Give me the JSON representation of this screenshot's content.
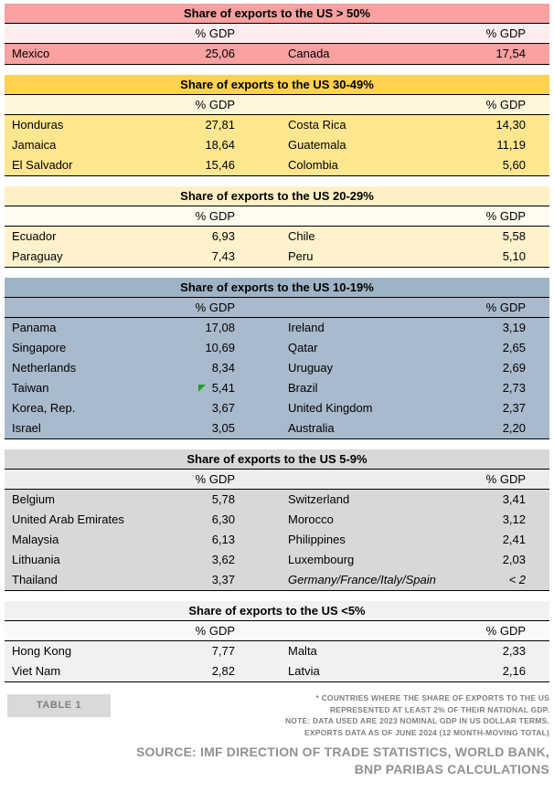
{
  "chart_data": {
    "type": "table",
    "unit": "% GDP",
    "marker_color": "#21A121",
    "sections": [
      {
        "title": "Share of exports to the US > 50%",
        "col_header_left": "% GDP",
        "col_header_right": "% GDP",
        "colors": {
          "header_bg": "#F9A0A0",
          "gdp_bg": "#FDEDED",
          "row_bg": "#F9A0A0"
        },
        "rows": [
          {
            "c1": "Mexico",
            "v1": "25,06",
            "c2": "Canada",
            "v2": "17,54"
          }
        ]
      },
      {
        "title": "Share of exports to the US 30-49%",
        "col_header_left": "% GDP",
        "col_header_right": "% GDP",
        "colors": {
          "header_bg": "#FFD24F",
          "gdp_bg": "#FFF6DC",
          "row_bg": "#FFE68F"
        },
        "rows": [
          {
            "c1": "Honduras",
            "v1": "27,81",
            "c2": "Costa Rica",
            "v2": "14,30"
          },
          {
            "c1": "Jamaica",
            "v1": "18,64",
            "c2": "Guatemala",
            "v2": "11,19"
          },
          {
            "c1": "El Salvador",
            "v1": "15,46",
            "c2": "Colombia",
            "v2": "5,60"
          }
        ]
      },
      {
        "title": "Share of exports to the US 20-29%",
        "col_header_left": "% GDP",
        "col_header_right": "% GDP",
        "colors": {
          "header_bg": "#FFF0C5",
          "gdp_bg": "#FFFBEE",
          "row_bg": "#FFF2CC"
        },
        "rows": [
          {
            "c1": "Ecuador",
            "v1": "6,93",
            "c2": "Chile",
            "v2": "5,58"
          },
          {
            "c1": "Paraguay",
            "v1": "7,43",
            "c2": "Peru",
            "v2": "5,10"
          }
        ]
      },
      {
        "title": "Share of exports to the US 10-19%",
        "col_header_left": "% GDP",
        "col_header_right": "% GDP",
        "colors": {
          "header_bg": "#9FB3C6",
          "gdp_bg": "#A8BACB",
          "row_bg": "#A8BACB"
        },
        "rows": [
          {
            "c1": "Panama",
            "v1": "17,08",
            "c2": "Ireland",
            "v2": "3,19"
          },
          {
            "c1": "Singapore",
            "v1": "10,69",
            "c2": "Qatar",
            "v2": "2,65"
          },
          {
            "c1": "Netherlands",
            "v1": "8,34",
            "c2": "Uruguay",
            "v2": "2,69"
          },
          {
            "c1": "Taiwan",
            "v1": "5,41",
            "c2": "Brazil",
            "v2": "2,73",
            "marker": true
          },
          {
            "c1": "Korea, Rep.",
            "v1": "3,67",
            "c2": "United Kingdom",
            "v2": "2,37"
          },
          {
            "c1": "Israel",
            "v1": "3,05",
            "c2": "Australia",
            "v2": "2,20"
          }
        ]
      },
      {
        "title": "Share of exports to the US 5-9%",
        "col_header_left": "% GDP",
        "col_header_right": "% GDP",
        "colors": {
          "header_bg": "#D8D8D8",
          "gdp_bg": "#EDEDED",
          "row_bg": "#D8D8D8"
        },
        "rows": [
          {
            "c1": "Belgium",
            "v1": "5,78",
            "c2": "Switzerland",
            "v2": "3,41"
          },
          {
            "c1": "United Arab Emirates",
            "v1": "6,30",
            "c2": "Morocco",
            "v2": "3,12"
          },
          {
            "c1": "Malaysia",
            "v1": "6,13",
            "c2": "Philippines",
            "v2": "2,41"
          },
          {
            "c1": "Lithuania",
            "v1": "3,62",
            "c2": "Luxembourg",
            "v2": "2,03"
          },
          {
            "c1": "Thailand",
            "v1": "3,37",
            "c2": "Germany/France/Italy/Spain",
            "v2": "< 2",
            "right_italic": true
          }
        ]
      },
      {
        "title": "Share of exports to the US <5%",
        "col_header_left": "% GDP",
        "col_header_right": "% GDP",
        "colors": {
          "header_bg": "#F1F1F1",
          "gdp_bg": "#FAFAFA",
          "row_bg": "#F1F1F1"
        },
        "rows": [
          {
            "c1": "Hong Kong",
            "v1": "7,77",
            "c2": "Malta",
            "v2": "2,33"
          },
          {
            "c1": "Viet Nam",
            "v1": "2,82",
            "c2": "Latvia",
            "v2": "2,16"
          }
        ]
      }
    ]
  },
  "footer": {
    "table_label": "TABLE 1",
    "footnote_lines": [
      "* COUNTRIES WHERE THE SHARE OF EXPORTS TO THE US",
      "REPRESENTED AT LEAST 2% OF THEIR NATIONAL GDP.",
      "NOTE: DATA USED ARE 2023 NOMINAL GDP IN US DOLLAR TERMS.",
      "EXPORTS DATA AS OF JUNE 2024 (12 MONTH-MOVING TOTAL)"
    ],
    "source_lines": [
      "SOURCE: IMF DIRECTION OF TRADE STATISTICS, WORLD BANK,",
      "BNP PARIBAS CALCULATIONS"
    ]
  }
}
